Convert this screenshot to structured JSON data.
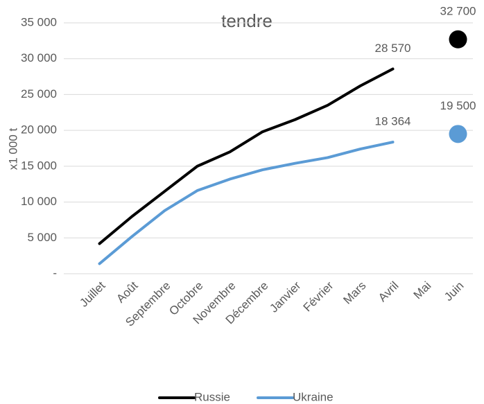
{
  "chart_data": {
    "type": "line",
    "title": "tendre",
    "y_label": "x1 000 t",
    "categories": [
      "Juillet",
      "Août",
      "Septembre",
      "Octobre",
      "Novembre",
      "Décembre",
      "Janvier",
      "Février",
      "Mars",
      "Avril",
      "Mai",
      "Juin"
    ],
    "series": [
      {
        "name": "Russie",
        "color": "#000000",
        "values": [
          4200,
          8000,
          11500,
          15000,
          17000,
          19800,
          21500,
          23500,
          26200,
          28570,
          null,
          32700
        ],
        "value_labels": [
          null,
          null,
          null,
          null,
          null,
          null,
          null,
          null,
          null,
          "28 570",
          null,
          "32 700"
        ]
      },
      {
        "name": "Ukraine",
        "color": "#5b9bd5",
        "values": [
          1400,
          5200,
          8800,
          11600,
          13200,
          14500,
          15400,
          16200,
          17400,
          18364,
          null,
          19500
        ],
        "value_labels": [
          null,
          null,
          null,
          null,
          null,
          null,
          null,
          null,
          null,
          "18 364",
          null,
          "19 500"
        ]
      }
    ],
    "ylim": [
      0,
      35000
    ],
    "yticks": [
      {
        "value": 0,
        "label": "-"
      },
      {
        "value": 5000,
        "label": "5 000"
      },
      {
        "value": 10000,
        "label": "10 000"
      },
      {
        "value": 15000,
        "label": "15 000"
      },
      {
        "value": 20000,
        "label": "20 000"
      },
      {
        "value": 25000,
        "label": "25 000"
      },
      {
        "value": 30000,
        "label": "30 000"
      },
      {
        "value": 35000,
        "label": "35 000"
      }
    ],
    "grid": true,
    "legend": "bottom"
  }
}
